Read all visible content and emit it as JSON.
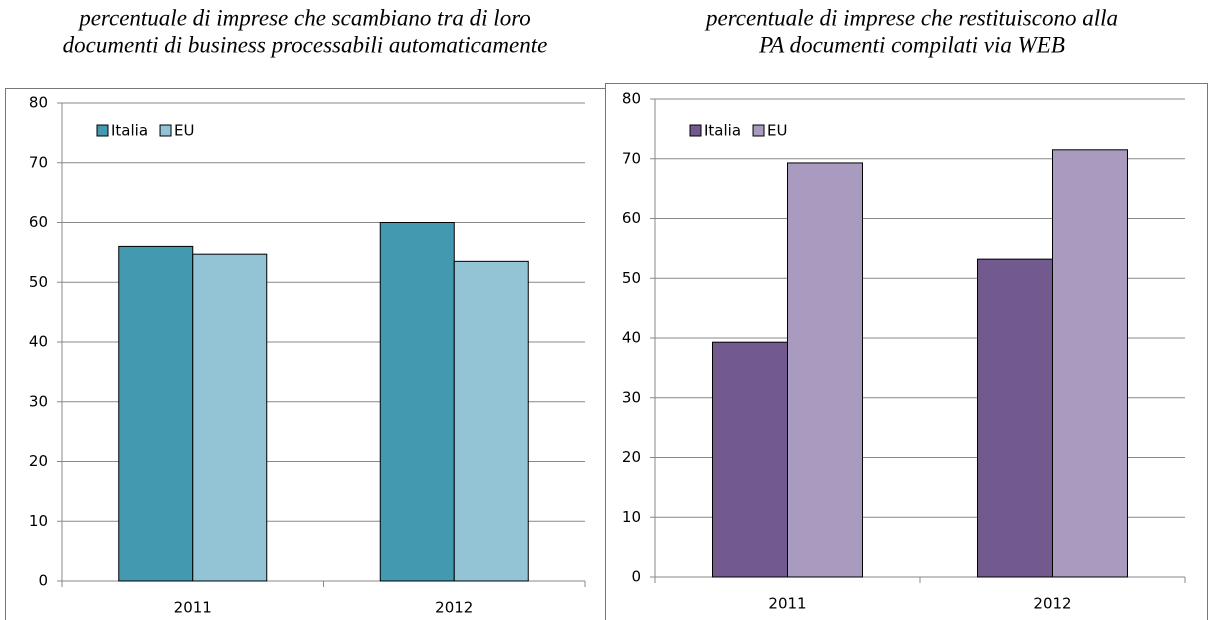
{
  "chart_data": [
    {
      "type": "bar",
      "title": [
        "percentuale di imprese che scambiano tra di loro",
        "documenti di business processabili automaticamente"
      ],
      "categories": [
        "2011",
        "2012"
      ],
      "series": [
        {
          "name": "Italia",
          "color": "#4299b0",
          "values": [
            56,
            60
          ]
        },
        {
          "name": "EU",
          "color": "#93c4d6",
          "values": [
            54.7,
            53.5
          ]
        }
      ],
      "ylim": [
        0,
        80
      ],
      "yticks": [
        0,
        10,
        20,
        30,
        40,
        50,
        60,
        70,
        80
      ],
      "grid": true,
      "legend": "top-left"
    },
    {
      "type": "bar",
      "title": [
        "percentuale di imprese che restituiscono alla",
        "PA documenti compilati via WEB"
      ],
      "categories": [
        "2011",
        "2012"
      ],
      "series": [
        {
          "name": "Italia",
          "color": "#735a8e",
          "values": [
            39.3,
            53.2
          ]
        },
        {
          "name": "EU",
          "color": "#a99abf",
          "values": [
            69.3,
            71.5
          ]
        }
      ],
      "ylim": [
        0,
        80
      ],
      "yticks": [
        0,
        10,
        20,
        30,
        40,
        50,
        60,
        70,
        80
      ],
      "grid": true,
      "legend": "top-left"
    }
  ]
}
